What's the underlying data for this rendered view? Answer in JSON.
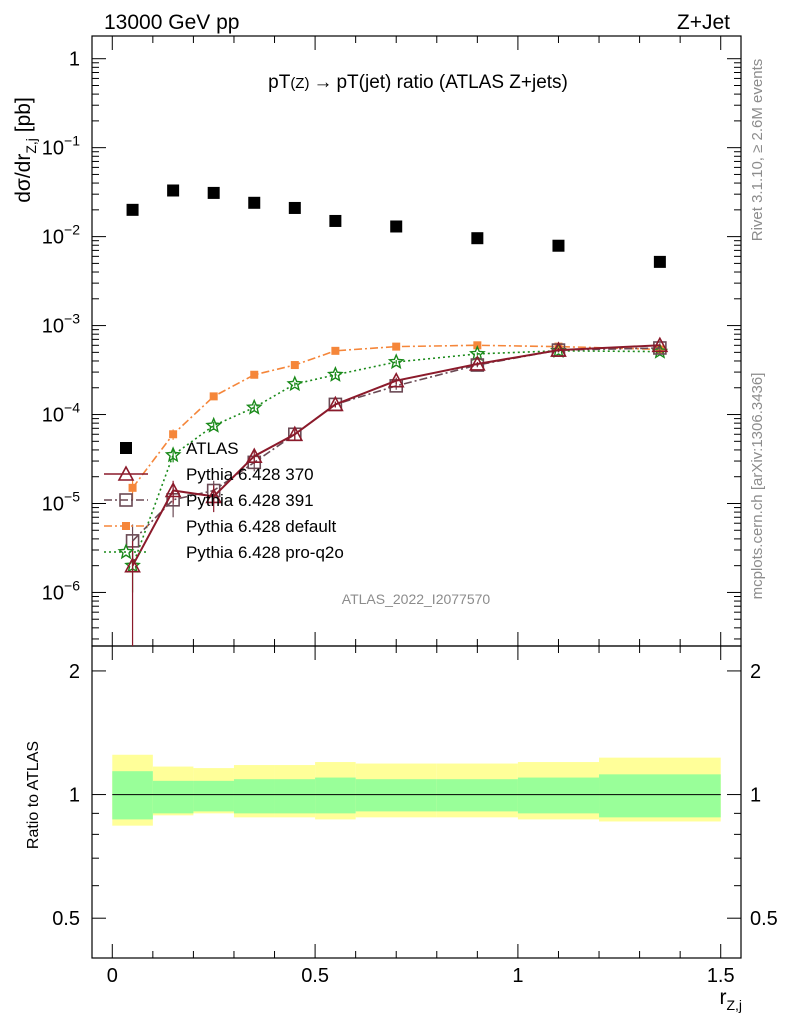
{
  "header": {
    "left": "13000 GeV pp",
    "right": "Z+Jet"
  },
  "title": {
    "part1": "pT",
    "part2": "(Z)",
    "arrow": "→",
    "part3": "pT(jet) ratio (ATLAS Z+jets)"
  },
  "ylabel_main": {
    "base": "dσ/dr",
    "sub": "Z,j",
    "unit": " [pb]"
  },
  "ylabel_ratio": "Ratio to ATLAS",
  "xlabel": {
    "base": "r",
    "sub": "Z,j"
  },
  "side": {
    "rivet": "Rivet 3.1.10, ≥ 2.6M events",
    "mcplots": "mcplots.cern.ch [arXiv:1306.3436]"
  },
  "watermark": "ATLAS_2022_I2077570",
  "x_ticks": [
    "0",
    "0.5",
    "1",
    "1.5"
  ],
  "y_ticks_main": [
    {
      "value": 1,
      "base": "1",
      "exp": ""
    },
    {
      "value": 0.1,
      "base": "10",
      "exp": "−1"
    },
    {
      "value": 0.01,
      "base": "10",
      "exp": "−2"
    },
    {
      "value": 0.001,
      "base": "10",
      "exp": "−3"
    },
    {
      "value": 0.0001,
      "base": "10",
      "exp": "−4"
    },
    {
      "value": 1e-05,
      "base": "10",
      "exp": "−5"
    },
    {
      "value": 1e-06,
      "base": "10",
      "exp": "−6"
    }
  ],
  "y_ticks_ratio": [
    "2",
    "1",
    "0.5"
  ],
  "colors": {
    "atlas": "#000000",
    "p370": "#8b1a2b",
    "p391": "#6b4a55",
    "default": "#f5863a",
    "proq2o": "#1a8a1a",
    "band_inner": "#99ff99",
    "band_outer": "#ffff99"
  },
  "chart_data": {
    "type": "scatter",
    "x": [
      0.05,
      0.15,
      0.25,
      0.35,
      0.45,
      0.55,
      0.7,
      0.9,
      1.1,
      1.35
    ],
    "x_edges": [
      0,
      0.1,
      0.2,
      0.3,
      0.4,
      0.5,
      0.6,
      0.8,
      1.0,
      1.2,
      1.5
    ],
    "xlim": [
      -0.05,
      1.55
    ],
    "ylim_main": [
      2.5e-07,
      1.8
    ],
    "yscale_main": "log",
    "ylim_ratio": [
      0.4,
      2.3
    ],
    "yscale_ratio": "log",
    "legend": "middle-left",
    "series": [
      {
        "key": "atlas",
        "name": "ATLAS",
        "marker": "square-filled",
        "line": "none",
        "values": [
          0.02,
          0.033,
          0.031,
          0.024,
          0.021,
          0.015,
          0.013,
          0.0096,
          0.0079,
          0.0052
        ]
      },
      {
        "key": "p370",
        "name": "Pythia 6.428 370",
        "marker": "triangle-open",
        "line": "solid",
        "values": [
          2e-06,
          1.4e-05,
          1.2e-05,
          3.4e-05,
          6e-05,
          0.00013,
          0.00024,
          0.00037,
          0.00053,
          0.0006
        ],
        "errors": [
          1.8e-06,
          4e-06,
          4e-06,
          6e-06,
          8e-06,
          1e-05,
          2e-05,
          2e-05,
          3e-05,
          3e-05
        ]
      },
      {
        "key": "p391",
        "name": "Pythia 6.428 391",
        "marker": "square-open",
        "line": "dashdot",
        "values": [
          3.8e-06,
          1.1e-05,
          1.4e-05,
          2.9e-05,
          6e-05,
          0.00013,
          0.00021,
          0.00036,
          0.00053,
          0.00056
        ],
        "errors": [
          2e-06,
          4e-06,
          4e-06,
          6e-06,
          8e-06,
          1e-05,
          2e-05,
          2e-05,
          3e-05,
          3e-05
        ]
      },
      {
        "key": "default",
        "name": "Pythia 6.428 default",
        "marker": "square-filled",
        "line": "dashdot",
        "values": [
          1.5e-05,
          6e-05,
          0.00016,
          0.00028,
          0.00036,
          0.00052,
          0.00058,
          0.0006,
          0.00058,
          0.00054
        ],
        "errors": [
          4e-06,
          8e-06,
          1e-05,
          2e-05,
          2e-05,
          2e-05,
          2e-05,
          2e-05,
          2e-05,
          2e-05
        ]
      },
      {
        "key": "proq2o",
        "name": "Pythia 6.428 pro-q2o",
        "marker": "star",
        "line": "dotted",
        "values": [
          2e-06,
          3.5e-05,
          7.5e-05,
          0.00012,
          0.00022,
          0.00028,
          0.00039,
          0.00048,
          0.00052,
          0.00051
        ],
        "errors": [
          1e-06,
          6e-06,
          8e-06,
          1e-05,
          1e-05,
          2e-05,
          2e-05,
          2e-05,
          2e-05,
          2e-05
        ]
      }
    ],
    "ratio_band": {
      "inner": [
        [
          0.87,
          1.14
        ],
        [
          0.9,
          1.08
        ],
        [
          0.91,
          1.08
        ],
        [
          0.9,
          1.09
        ],
        [
          0.9,
          1.09
        ],
        [
          0.9,
          1.1
        ],
        [
          0.91,
          1.09
        ],
        [
          0.91,
          1.09
        ],
        [
          0.9,
          1.1
        ],
        [
          0.88,
          1.12
        ]
      ],
      "outer": [
        [
          0.84,
          1.25
        ],
        [
          0.89,
          1.17
        ],
        [
          0.9,
          1.16
        ],
        [
          0.88,
          1.18
        ],
        [
          0.88,
          1.18
        ],
        [
          0.87,
          1.2
        ],
        [
          0.88,
          1.19
        ],
        [
          0.88,
          1.19
        ],
        [
          0.87,
          1.2
        ],
        [
          0.86,
          1.23
        ]
      ]
    }
  }
}
